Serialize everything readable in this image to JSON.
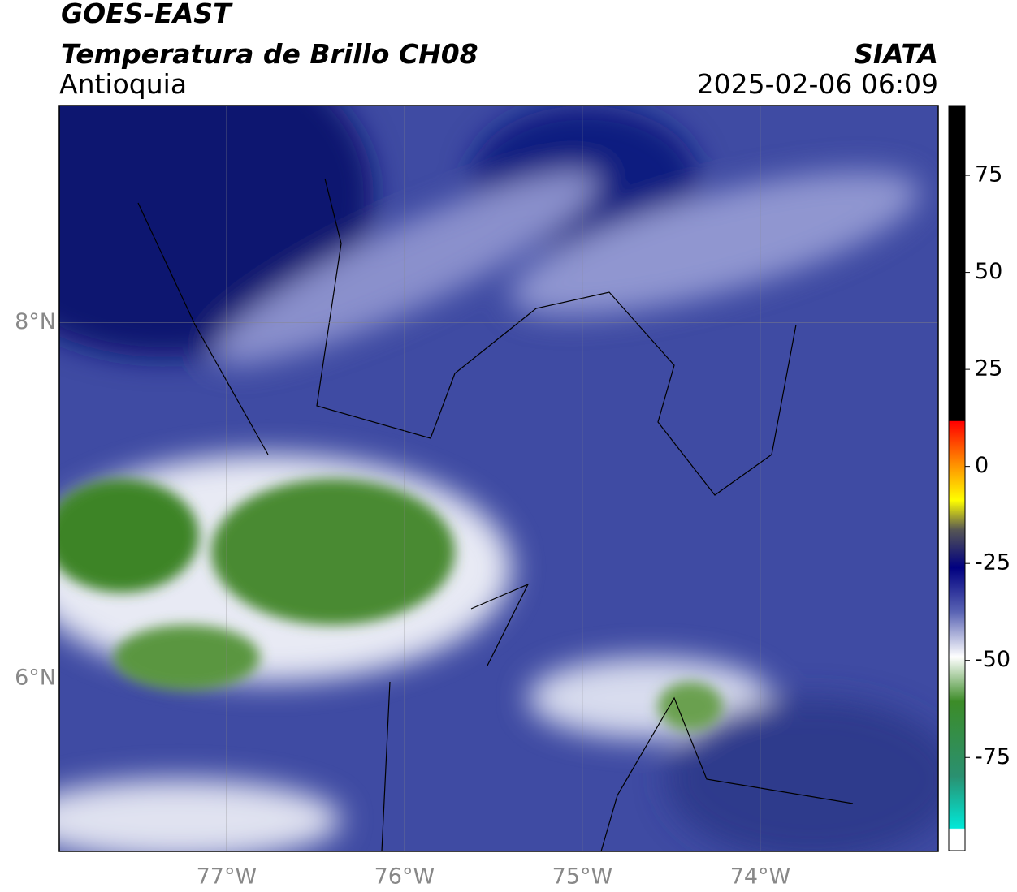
{
  "header": {
    "title": "GOES-EAST",
    "subtitle": "Temperatura de Brillo CH08",
    "region": "Antioquia",
    "source": "SIATA",
    "datetime": "2025-02-06 06:09"
  },
  "map": {
    "xlim": [
      -77.94,
      -73.0
    ],
    "ylim": [
      5.03,
      9.22
    ],
    "lon_ticks": [
      {
        "value": -77,
        "label": "77°W"
      },
      {
        "value": -76,
        "label": "76°W"
      },
      {
        "value": -75,
        "label": "75°W"
      },
      {
        "value": -74,
        "label": "74°W"
      }
    ],
    "lat_ticks": [
      {
        "value": 8,
        "label": "8°N"
      },
      {
        "value": 6,
        "label": "6°N"
      }
    ]
  },
  "colorbar": {
    "lim": [
      -99,
      93
    ],
    "ticks": [
      75,
      50,
      25,
      0,
      -25,
      -50,
      -75
    ]
  }
}
